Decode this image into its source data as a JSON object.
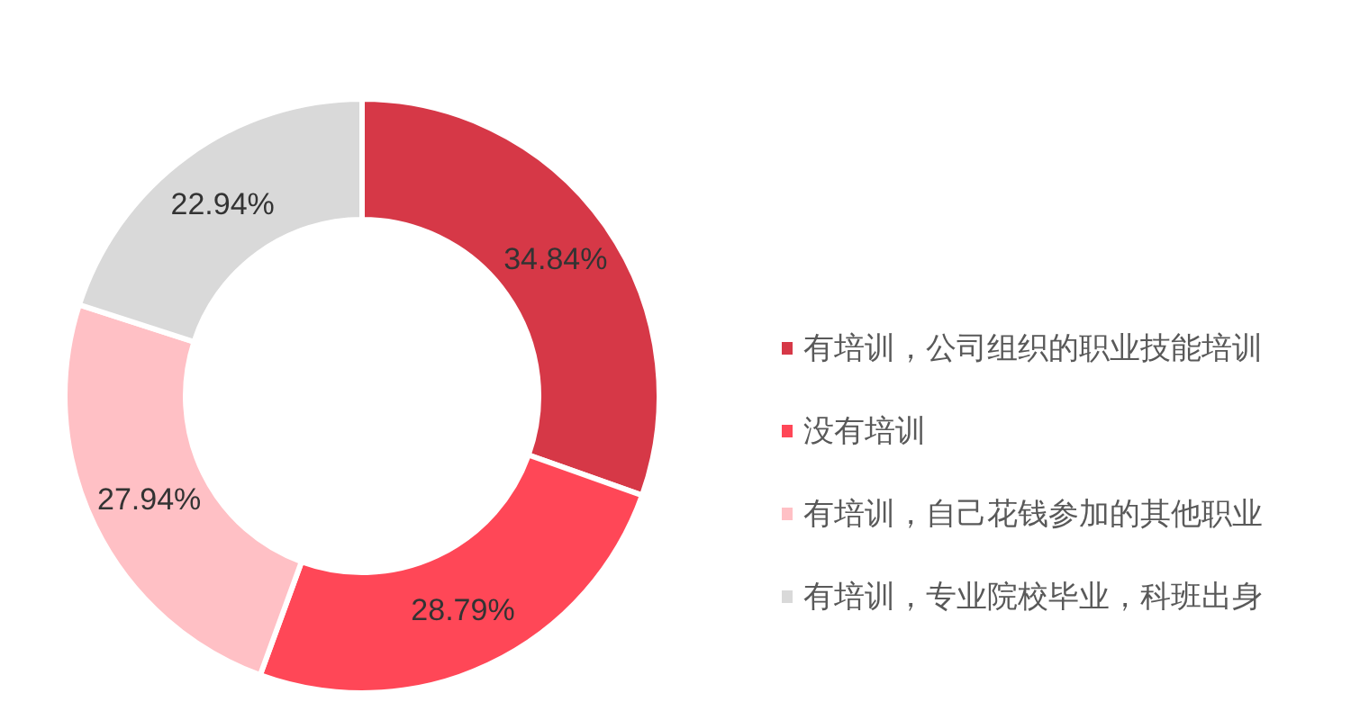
{
  "chart_data": {
    "type": "donut",
    "categories": [
      "有培训，公司组织的职业技能培训",
      "没有培训",
      "有培训，自己花钱参加的其他职业",
      "有培训，专业院校毕业，科班出身"
    ],
    "values": [
      34.84,
      28.79,
      27.94,
      22.94
    ],
    "colors": [
      "#d63847",
      "#ff4757",
      "#ffc0c5",
      "#d9d9d9"
    ],
    "value_labels": [
      "34.84%",
      "28.79%",
      "27.94%",
      "22.94%"
    ],
    "legend": "right"
  }
}
